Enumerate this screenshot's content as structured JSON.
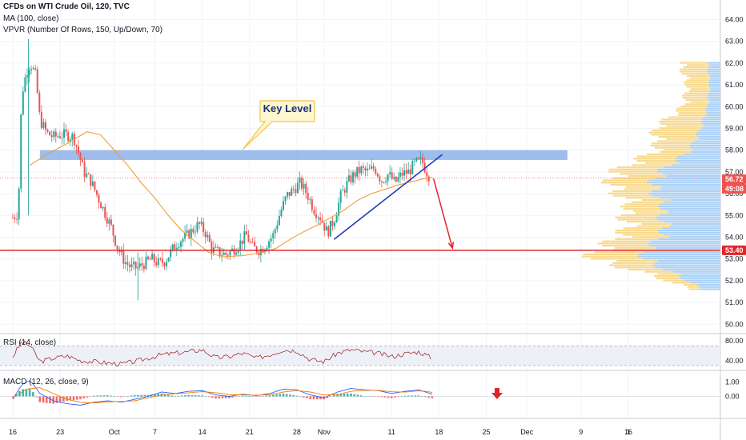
{
  "header": {
    "title": "CFDs on WTI Crude Oil, 120, TVC",
    "ma_label": "MA (100, close)",
    "vpvr_label": "VPVR (Number Of Rows, 150, Up/Down, 70)",
    "rsi_label": "RSI (14, close)",
    "macd_label": "MACD (12, 26, close, 9)"
  },
  "annotation": {
    "key_level": "Key Level"
  },
  "price_tags": {
    "current": "56.72",
    "countdown": "49:08",
    "support": "53.40"
  },
  "colors": {
    "up": "#26a69a",
    "down": "#ef5350",
    "ma": "#f39c3a",
    "zone": "#7ea6e6",
    "support": "#e3242b",
    "trendline": "#1f3eb3",
    "callout_fill": "#fff7cf",
    "callout_border": "#f3c34a",
    "rsi": "#a0302e",
    "macd": "#2962ff",
    "signal": "#f57c00",
    "vp_up": "#9cc9f5",
    "vp_down": "#f7d37a"
  },
  "chart_data": {
    "type": "candlestick",
    "symbol": "CFDs on WTI Crude Oil, 120, TVC",
    "y_axis": {
      "range": [
        49.8,
        64.5
      ],
      "ticks": [
        "64.00",
        "63.00",
        "62.00",
        "61.00",
        "60.00",
        "59.00",
        "58.00",
        "57.00",
        "56.00",
        "55.00",
        "54.00",
        "53.00",
        "52.00",
        "51.00",
        "50.00"
      ]
    },
    "x_axis": {
      "range_days": [
        0,
        82
      ],
      "ticks": [
        {
          "label": "16",
          "day": 0
        },
        {
          "label": "23",
          "day": 7
        },
        {
          "label": "Oct",
          "day": 15
        },
        {
          "label": "7",
          "day": 21
        },
        {
          "label": "14",
          "day": 28
        },
        {
          "label": "21",
          "day": 35
        },
        {
          "label": "28",
          "day": 42
        },
        {
          "label": "Nov",
          "day": 46
        },
        {
          "label": "11",
          "day": 56
        },
        {
          "label": "18",
          "day": 63
        },
        {
          "label": "25",
          "day": 70
        },
        {
          "label": "Dec",
          "day": 76
        },
        {
          "label": "9",
          "day": 84
        },
        {
          "label": "16",
          "day": 91
        },
        {
          "label": "1",
          "day": 91
        }
      ]
    },
    "price_path": [
      [
        0,
        54.9
      ],
      [
        0.8,
        55.1
      ],
      [
        1.3,
        60.5
      ],
      [
        2.0,
        61.6
      ],
      [
        2.6,
        62.0
      ],
      [
        3.4,
        61.4
      ],
      [
        4.0,
        59.4
      ],
      [
        5.0,
        58.8
      ],
      [
        6.0,
        58.6
      ],
      [
        7.0,
        58.7
      ],
      [
        8.0,
        58.7
      ],
      [
        9.0,
        58.6
      ],
      [
        9.6,
        58.0
      ],
      [
        10.5,
        57.0
      ],
      [
        11.5,
        56.6
      ],
      [
        12.5,
        55.9
      ],
      [
        13.5,
        55.2
      ],
      [
        14.5,
        54.5
      ],
      [
        15.5,
        53.5
      ],
      [
        16.5,
        52.9
      ],
      [
        17.5,
        52.6
      ],
      [
        18.5,
        52.6
      ],
      [
        19.5,
        52.8
      ],
      [
        20.5,
        53.0
      ],
      [
        21.5,
        52.8
      ],
      [
        22.5,
        52.9
      ],
      [
        23.5,
        53.4
      ],
      [
        24.5,
        53.8
      ],
      [
        25.5,
        54.0
      ],
      [
        26.5,
        54.3
      ],
      [
        27.5,
        54.6
      ],
      [
        28.5,
        54.2
      ],
      [
        29.5,
        53.4
      ],
      [
        30.5,
        53.3
      ],
      [
        31.5,
        53.2
      ],
      [
        32.5,
        53.4
      ],
      [
        33.5,
        53.7
      ],
      [
        34.5,
        54.1
      ],
      [
        35.5,
        53.5
      ],
      [
        36.5,
        53.4
      ],
      [
        37.5,
        53.7
      ],
      [
        38.5,
        54.1
      ],
      [
        39.5,
        55.1
      ],
      [
        40.5,
        55.9
      ],
      [
        41.5,
        56.2
      ],
      [
        42.5,
        56.5
      ],
      [
        43.5,
        56.0
      ],
      [
        44.5,
        55.3
      ],
      [
        45.5,
        54.9
      ],
      [
        46.5,
        54.2
      ],
      [
        47.5,
        54.8
      ],
      [
        48.5,
        55.9
      ],
      [
        49.5,
        56.5
      ],
      [
        50.5,
        56.9
      ],
      [
        51.5,
        57.1
      ],
      [
        52.5,
        57.0
      ],
      [
        53.5,
        57.2
      ],
      [
        54.5,
        56.6
      ],
      [
        55.5,
        56.9
      ],
      [
        56.5,
        56.5
      ],
      [
        57.5,
        56.9
      ],
      [
        58.5,
        57.0
      ],
      [
        59.5,
        57.4
      ],
      [
        60.5,
        57.5
      ],
      [
        61.2,
        57.0
      ],
      [
        61.8,
        56.7
      ]
    ],
    "wick_extremes": [
      {
        "day": 2.3,
        "high": 63.1,
        "low": 55.0
      },
      {
        "day": 18.5,
        "high": 53.3,
        "low": 51.1
      }
    ],
    "moving_average": {
      "name": "MA (100, close)",
      "points": [
        [
          2.5,
          57.3
        ],
        [
          5,
          57.8
        ],
        [
          8,
          58.3
        ],
        [
          11,
          58.85
        ],
        [
          13,
          58.7
        ],
        [
          15,
          58.0
        ],
        [
          17,
          57.3
        ],
        [
          19,
          56.5
        ],
        [
          21,
          55.8
        ],
        [
          23,
          55.0
        ],
        [
          25,
          54.3
        ],
        [
          27,
          53.8
        ],
        [
          29,
          53.3
        ],
        [
          31,
          53.1
        ],
        [
          34,
          53.15
        ],
        [
          37,
          53.3
        ],
        [
          39,
          53.5
        ],
        [
          41,
          53.9
        ],
        [
          43,
          54.25
        ],
        [
          45,
          54.55
        ],
        [
          47,
          54.9
        ],
        [
          49,
          55.25
        ],
        [
          51,
          55.7
        ],
        [
          53,
          56.0
        ],
        [
          55,
          56.2
        ],
        [
          57,
          56.4
        ],
        [
          59,
          56.55
        ],
        [
          61,
          56.7
        ],
        [
          62,
          56.75
        ]
      ]
    },
    "key_level_zone": {
      "label": "Key Level",
      "from_day": 4.0,
      "to_day": 82,
      "low": 57.55,
      "high": 58.0
    },
    "support_level": {
      "price": 53.4,
      "label": "53.40"
    },
    "current_price": {
      "price": 56.72,
      "label": "56.72",
      "countdown": "49:08"
    },
    "trendline": {
      "from": [
        47.5,
        53.9
      ],
      "to": [
        63.5,
        57.8
      ]
    },
    "projection": {
      "from": [
        62.2,
        56.7
      ],
      "to": [
        65.0,
        53.5
      ]
    },
    "volume_profile": {
      "note": "relative row widths by price level; up = blue share, down = yellow share",
      "rows": [
        {
          "price": 62.0,
          "up": 0.12,
          "down": 0.25
        },
        {
          "price": 61.0,
          "up": 0.1,
          "down": 0.2
        },
        {
          "price": 60.0,
          "up": 0.12,
          "down": 0.22
        },
        {
          "price": 59.0,
          "up": 0.18,
          "down": 0.42
        },
        {
          "price": 58.0,
          "up": 0.28,
          "down": 0.3
        },
        {
          "price": 57.0,
          "up": 0.55,
          "down": 0.42
        },
        {
          "price": 56.5,
          "up": 0.62,
          "down": 0.38
        },
        {
          "price": 56.0,
          "up": 0.6,
          "down": 0.34
        },
        {
          "price": 55.5,
          "up": 0.52,
          "down": 0.3
        },
        {
          "price": 55.0,
          "up": 0.55,
          "down": 0.35
        },
        {
          "price": 54.5,
          "up": 0.5,
          "down": 0.32
        },
        {
          "price": 54.0,
          "up": 0.56,
          "down": 0.4
        },
        {
          "price": 53.5,
          "up": 0.65,
          "down": 0.42
        },
        {
          "price": 53.0,
          "up": 0.72,
          "down": 0.48
        },
        {
          "price": 52.5,
          "up": 0.5,
          "down": 0.3
        },
        {
          "price": 52.0,
          "up": 0.3,
          "down": 0.18
        },
        {
          "price": 51.5,
          "up": 0.15,
          "down": 0.08
        }
      ]
    },
    "rsi": {
      "name": "RSI (14, close)",
      "range": [
        25,
        90
      ],
      "levels": [
        70,
        30
      ],
      "ticks": [
        "80.00",
        "40.00"
      ],
      "points": [
        [
          0,
          48
        ],
        [
          1.3,
          78
        ],
        [
          2.6,
          70
        ],
        [
          4,
          38
        ],
        [
          6,
          45
        ],
        [
          8,
          50
        ],
        [
          10,
          40
        ],
        [
          12,
          38
        ],
        [
          14,
          35
        ],
        [
          16,
          33
        ],
        [
          18,
          38
        ],
        [
          20,
          45
        ],
        [
          22,
          52
        ],
        [
          24,
          55
        ],
        [
          26,
          58
        ],
        [
          28,
          62
        ],
        [
          30,
          46
        ],
        [
          32,
          48
        ],
        [
          34,
          55
        ],
        [
          36,
          45
        ],
        [
          38,
          52
        ],
        [
          40,
          62
        ],
        [
          42,
          60
        ],
        [
          44,
          42
        ],
        [
          46,
          38
        ],
        [
          48,
          55
        ],
        [
          50,
          62
        ],
        [
          52,
          58
        ],
        [
          54,
          55
        ],
        [
          56,
          48
        ],
        [
          58,
          54
        ],
        [
          60,
          58
        ],
        [
          61,
          52
        ],
        [
          62,
          45
        ]
      ]
    },
    "macd": {
      "name": "MACD (12, 26, close, 9)",
      "range": [
        -1.4,
        1.4
      ],
      "ticks": [
        "1.00",
        "0.00"
      ],
      "macd_points": [
        [
          0,
          -0.2
        ],
        [
          1.3,
          0.8
        ],
        [
          2.6,
          1.1
        ],
        [
          4,
          0.2
        ],
        [
          6,
          -0.3
        ],
        [
          8,
          -0.5
        ],
        [
          10,
          -0.6
        ],
        [
          12,
          -0.4
        ],
        [
          14,
          -0.3
        ],
        [
          16,
          -0.4
        ],
        [
          18,
          -0.2
        ],
        [
          20,
          0.0
        ],
        [
          22,
          0.3
        ],
        [
          24,
          0.2
        ],
        [
          26,
          0.35
        ],
        [
          28,
          0.4
        ],
        [
          30,
          0.1
        ],
        [
          32,
          0.0
        ],
        [
          34,
          0.15
        ],
        [
          36,
          0.05
        ],
        [
          38,
          0.2
        ],
        [
          40,
          0.5
        ],
        [
          42,
          0.45
        ],
        [
          44,
          0.1
        ],
        [
          46,
          -0.1
        ],
        [
          48,
          0.3
        ],
        [
          50,
          0.55
        ],
        [
          52,
          0.45
        ],
        [
          54,
          0.4
        ],
        [
          56,
          0.2
        ],
        [
          58,
          0.35
        ],
        [
          60,
          0.45
        ],
        [
          61,
          0.3
        ],
        [
          62,
          0.15
        ]
      ],
      "signal_points": [
        [
          0,
          -0.1
        ],
        [
          2,
          0.5
        ],
        [
          4,
          0.6
        ],
        [
          6,
          0.2
        ],
        [
          8,
          -0.2
        ],
        [
          10,
          -0.4
        ],
        [
          12,
          -0.45
        ],
        [
          14,
          -0.38
        ],
        [
          16,
          -0.35
        ],
        [
          18,
          -0.3
        ],
        [
          20,
          -0.1
        ],
        [
          22,
          0.1
        ],
        [
          24,
          0.18
        ],
        [
          26,
          0.25
        ],
        [
          28,
          0.33
        ],
        [
          30,
          0.25
        ],
        [
          32,
          0.12
        ],
        [
          34,
          0.1
        ],
        [
          36,
          0.08
        ],
        [
          38,
          0.12
        ],
        [
          40,
          0.3
        ],
        [
          42,
          0.4
        ],
        [
          44,
          0.3
        ],
        [
          46,
          0.1
        ],
        [
          48,
          0.12
        ],
        [
          50,
          0.35
        ],
        [
          52,
          0.42
        ],
        [
          54,
          0.42
        ],
        [
          56,
          0.32
        ],
        [
          58,
          0.3
        ],
        [
          60,
          0.38
        ],
        [
          61,
          0.35
        ],
        [
          62,
          0.28
        ]
      ]
    }
  }
}
